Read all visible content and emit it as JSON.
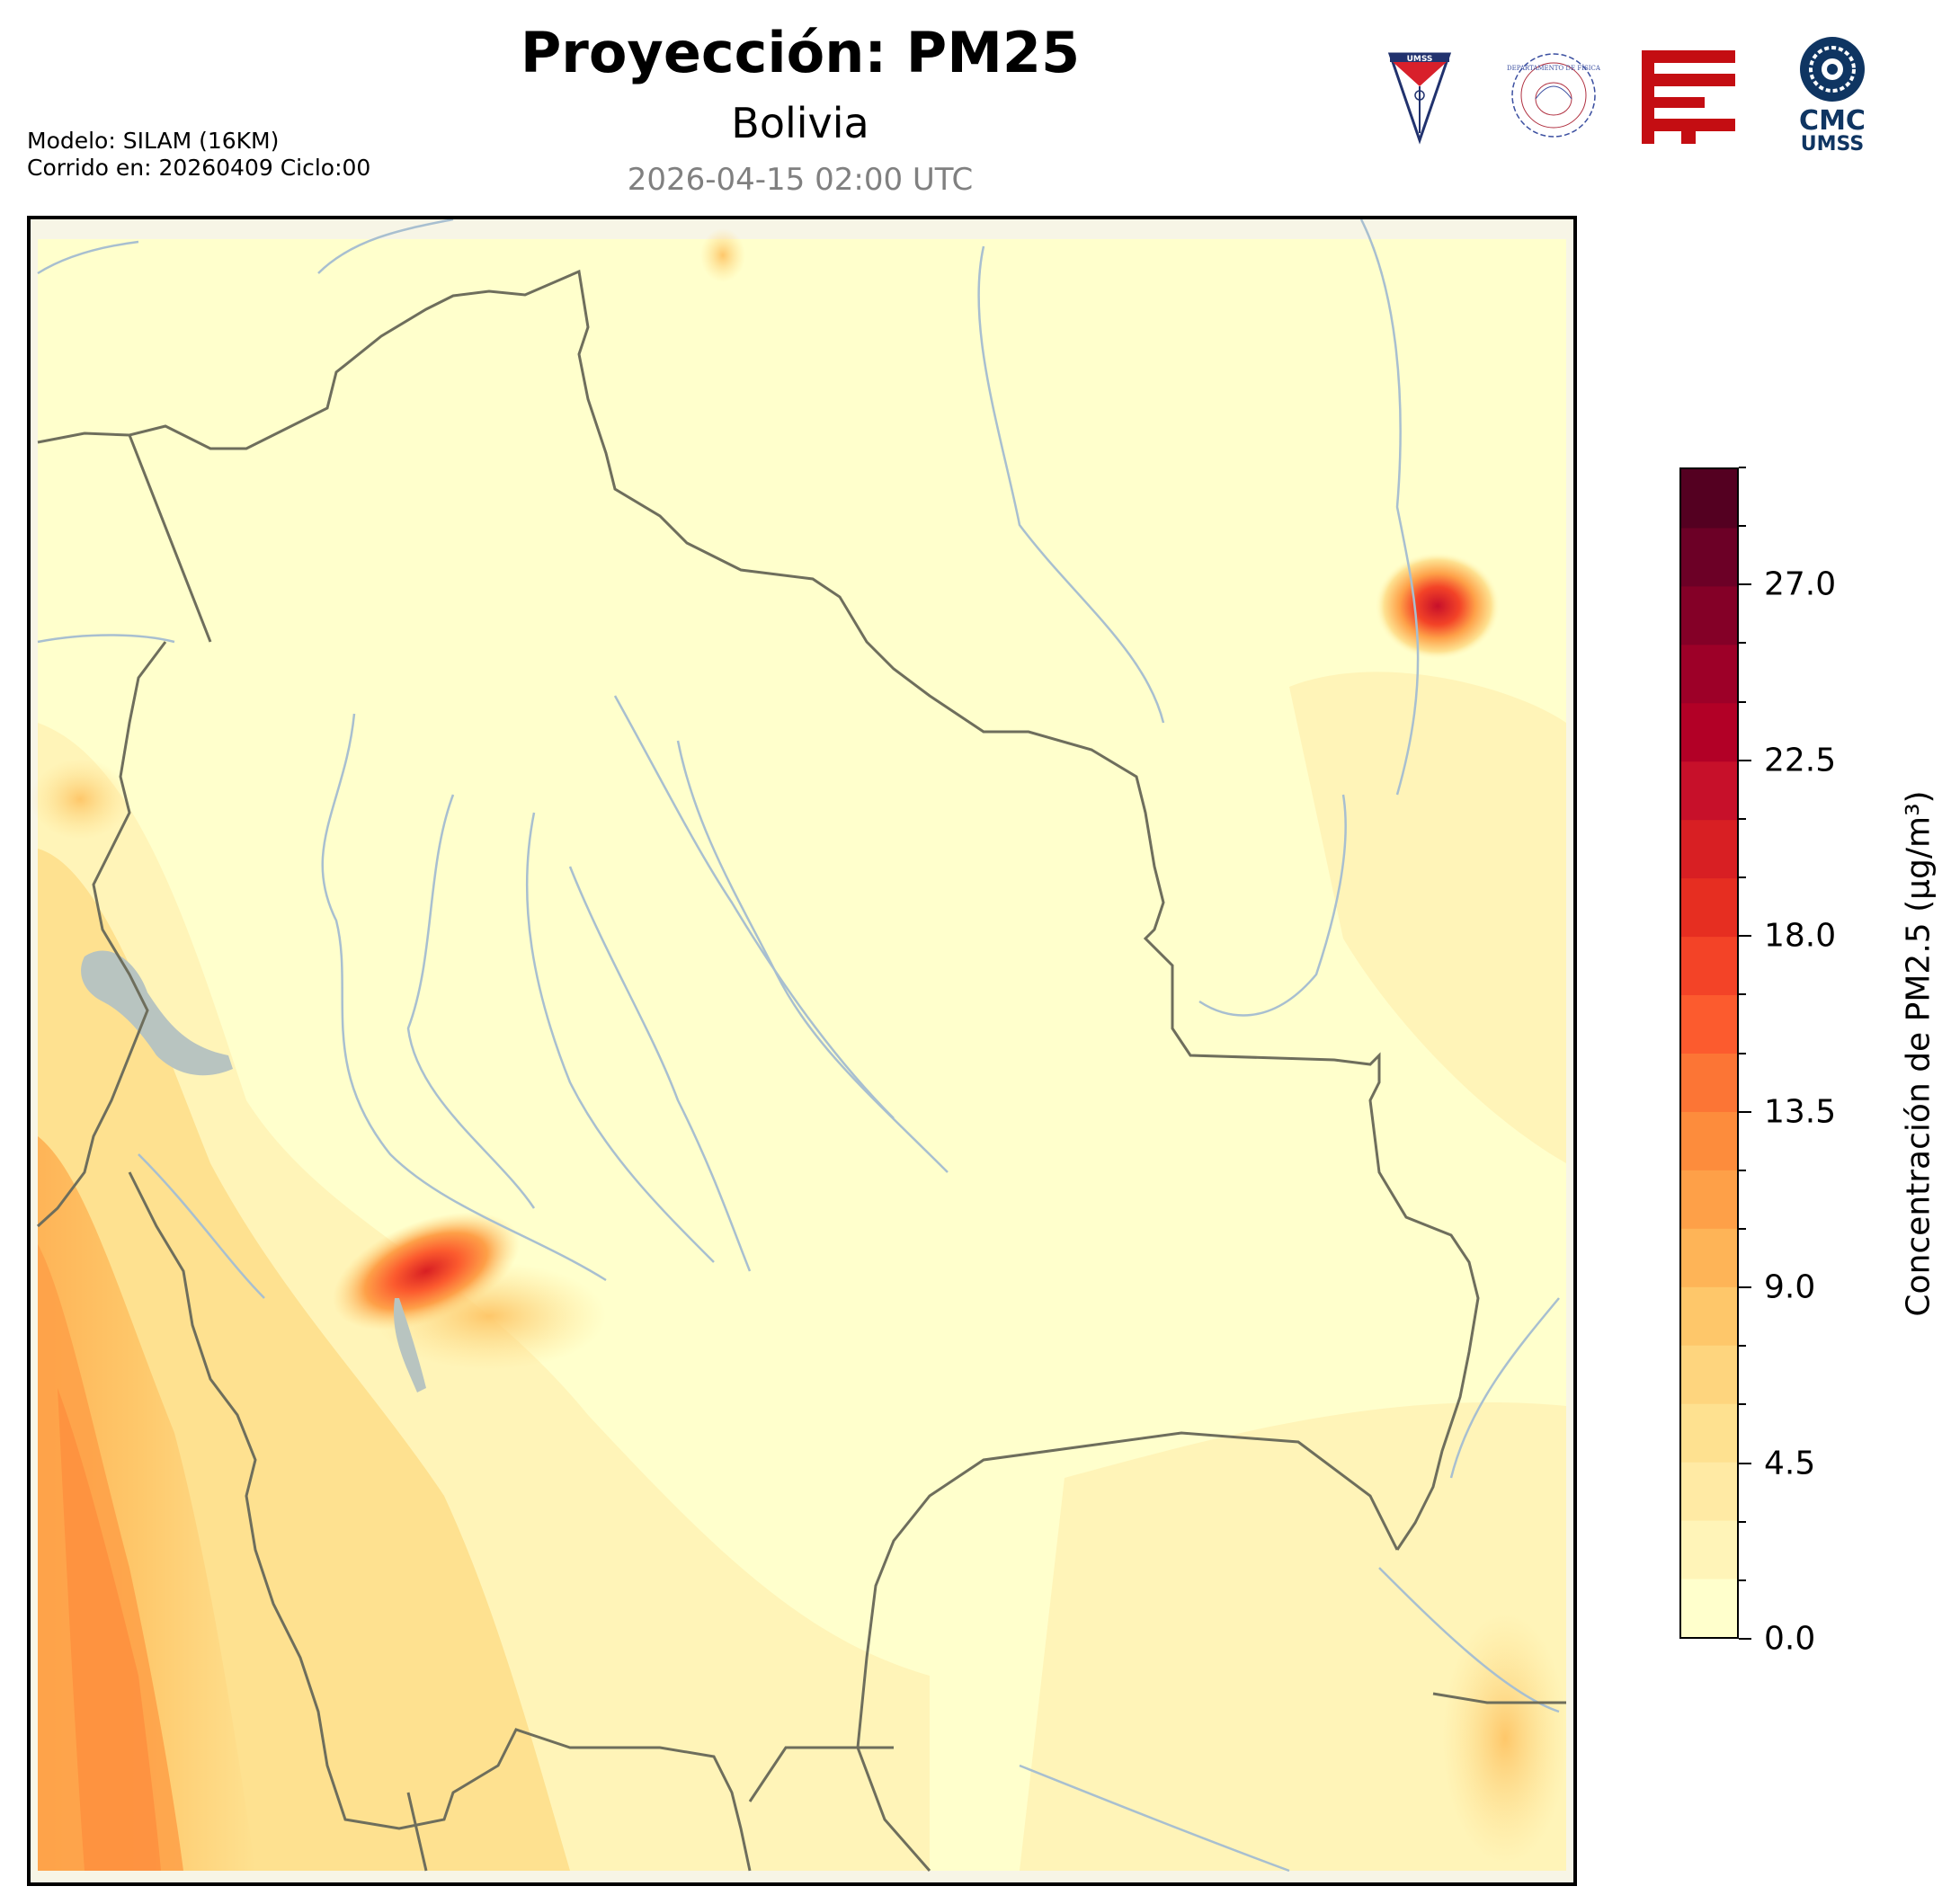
{
  "header": {
    "title": "Proyección: PM25",
    "subtitle": "Bolivia",
    "datetime": "2026-04-15 02:00 UTC",
    "model": "Modelo: SILAM (16KM)",
    "run": "Corrido en: 20260409 Ciclo:00"
  },
  "logos": [
    {
      "name": "umss-shield-logo",
      "text": "UMSS"
    },
    {
      "name": "departamento-fisica-seal-logo",
      "text": "DEPARTAMENTO DE FÍSICA"
    },
    {
      "name": "red-geometric-logo"
    },
    {
      "name": "cmc-umss-logo",
      "line1": "CMC",
      "line2": "UMSS"
    }
  ],
  "colorbar": {
    "label": "Concentración de PM2.5 (µg/m³)",
    "min": 0.0,
    "max": 30.0,
    "step": 1.5,
    "ticks": [
      "0.0",
      "4.5",
      "9.0",
      "13.5",
      "18.0",
      "22.5",
      "27.0"
    ],
    "colors": [
      "#ffffcc",
      "#fff4b8",
      "#ffeaa4",
      "#fee190",
      "#fed57e",
      "#fec76a",
      "#feb457",
      "#fea048",
      "#fd8c3c",
      "#fc7535",
      "#fc5b2e",
      "#f34327",
      "#e62e21",
      "#d81f23",
      "#c7102a",
      "#b20026",
      "#9d0028",
      "#840027",
      "#6c0026",
      "#540021"
    ]
  },
  "map": {
    "region": "Bolivia",
    "hotspots": [
      {
        "name": "eastern-hotspot",
        "value": 22
      },
      {
        "name": "la-paz-hotspot",
        "value": 20
      }
    ]
  }
}
